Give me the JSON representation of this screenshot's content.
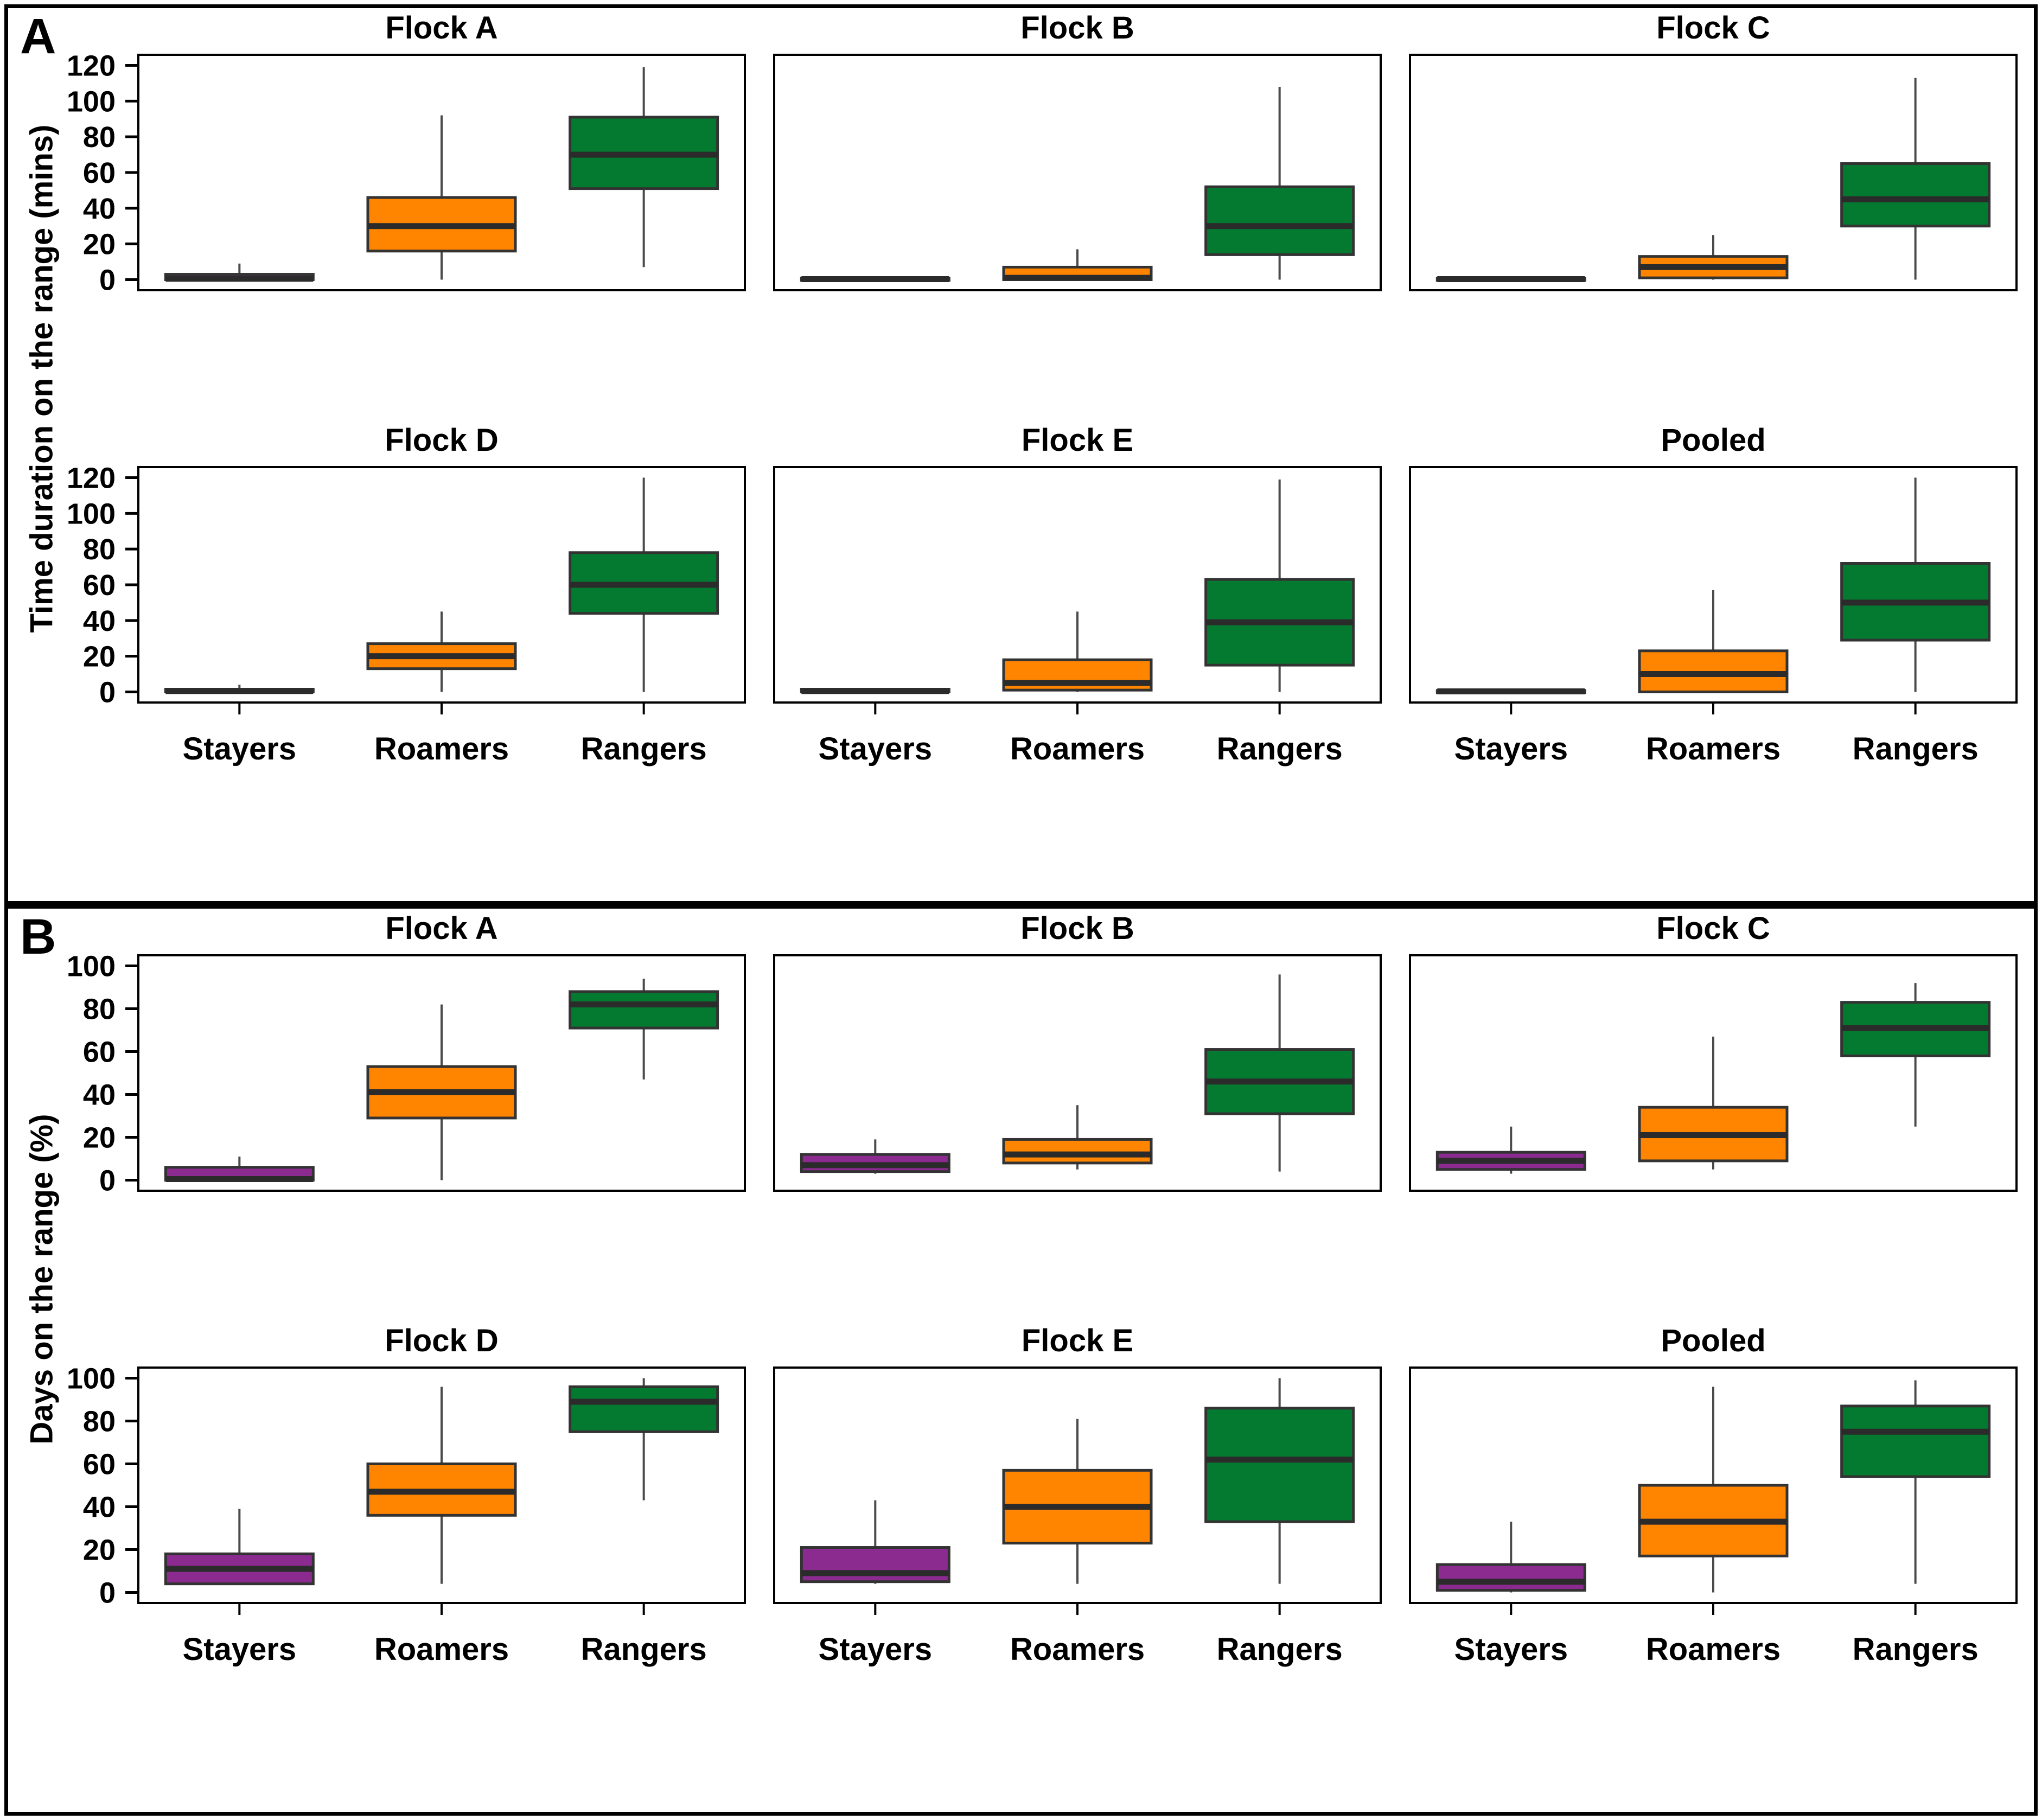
{
  "colors": {
    "stayers_fill": "#8B2A8F",
    "roamers_fill": "#FF8500",
    "rangers_fill": "#047A30",
    "box_border": "#333333",
    "median_line": "#2B2B2B",
    "whisker_line": "#4A4A4A",
    "frame": "#000000"
  },
  "chart_data": [
    {
      "type": "boxplot",
      "panel_label": "A",
      "ylabel": "Time duration on the range (mins)",
      "ylim": [
        0,
        120
      ],
      "yticks": [
        0,
        20,
        40,
        60,
        80,
        100,
        120
      ],
      "categories": [
        "Stayers",
        "Roamers",
        "Rangers"
      ],
      "legend_position": "none",
      "grid": false,
      "subplots": [
        {
          "title": "Flock A",
          "boxes": [
            {
              "category": "Stayers",
              "whisker_low": 0,
              "q1": 0,
              "median": 0.5,
              "q3": 3,
              "whisker_high": 9
            },
            {
              "category": "Roamers",
              "whisker_low": 0,
              "q1": 16,
              "median": 30,
              "q3": 46,
              "whisker_high": 92
            },
            {
              "category": "Rangers",
              "whisker_low": 7,
              "q1": 51,
              "median": 70,
              "q3": 91,
              "whisker_high": 119
            }
          ]
        },
        {
          "title": "Flock B",
          "boxes": [
            {
              "category": "Stayers",
              "whisker_low": 0,
              "q1": 0,
              "median": 0.3,
              "q3": 0.8,
              "whisker_high": 1
            },
            {
              "category": "Roamers",
              "whisker_low": 0,
              "q1": 0,
              "median": 1,
              "q3": 7,
              "whisker_high": 17
            },
            {
              "category": "Rangers",
              "whisker_low": 0,
              "q1": 14,
              "median": 30,
              "q3": 52,
              "whisker_high": 108
            }
          ]
        },
        {
          "title": "Flock C",
          "boxes": [
            {
              "category": "Stayers",
              "whisker_low": 0,
              "q1": 0,
              "median": 0.3,
              "q3": 0.8,
              "whisker_high": 1
            },
            {
              "category": "Roamers",
              "whisker_low": 0,
              "q1": 1,
              "median": 7,
              "q3": 13,
              "whisker_high": 25
            },
            {
              "category": "Rangers",
              "whisker_low": 0,
              "q1": 30,
              "median": 45,
              "q3": 65,
              "whisker_high": 113
            }
          ]
        },
        {
          "title": "Flock D",
          "boxes": [
            {
              "category": "Stayers",
              "whisker_low": 0,
              "q1": 0,
              "median": 0.5,
              "q3": 1.5,
              "whisker_high": 4
            },
            {
              "category": "Roamers",
              "whisker_low": 0,
              "q1": 13,
              "median": 20,
              "q3": 27,
              "whisker_high": 45
            },
            {
              "category": "Rangers",
              "whisker_low": 0,
              "q1": 44,
              "median": 60,
              "q3": 78,
              "whisker_high": 120
            }
          ]
        },
        {
          "title": "Flock E",
          "boxes": [
            {
              "category": "Stayers",
              "whisker_low": 0,
              "q1": 0,
              "median": 0.5,
              "q3": 1.5,
              "whisker_high": 2
            },
            {
              "category": "Roamers",
              "whisker_low": 0,
              "q1": 1,
              "median": 5,
              "q3": 18,
              "whisker_high": 45
            },
            {
              "category": "Rangers",
              "whisker_low": 0,
              "q1": 15,
              "median": 39,
              "q3": 63,
              "whisker_high": 119
            }
          ]
        },
        {
          "title": "Pooled",
          "boxes": [
            {
              "category": "Stayers",
              "whisker_low": 0,
              "q1": 0,
              "median": 0.3,
              "q3": 0.8,
              "whisker_high": 1
            },
            {
              "category": "Roamers",
              "whisker_low": 0,
              "q1": 0,
              "median": 10,
              "q3": 23,
              "whisker_high": 57
            },
            {
              "category": "Rangers",
              "whisker_low": 0,
              "q1": 29,
              "median": 50,
              "q3": 72,
              "whisker_high": 120
            }
          ]
        }
      ]
    },
    {
      "type": "boxplot",
      "panel_label": "B",
      "ylabel": "Days on the range (%)",
      "ylim": [
        0,
        100
      ],
      "yticks": [
        0,
        20,
        40,
        60,
        80,
        100
      ],
      "categories": [
        "Stayers",
        "Roamers",
        "Rangers"
      ],
      "legend_position": "none",
      "grid": false,
      "subplots": [
        {
          "title": "Flock A",
          "boxes": [
            {
              "category": "Stayers",
              "whisker_low": 0,
              "q1": 0,
              "median": 0.5,
              "q3": 6,
              "whisker_high": 11
            },
            {
              "category": "Roamers",
              "whisker_low": 0,
              "q1": 29,
              "median": 41,
              "q3": 53,
              "whisker_high": 82
            },
            {
              "category": "Rangers",
              "whisker_low": 47,
              "q1": 71,
              "median": 82,
              "q3": 88,
              "whisker_high": 94
            }
          ]
        },
        {
          "title": "Flock B",
          "boxes": [
            {
              "category": "Stayers",
              "whisker_low": 3,
              "q1": 4,
              "median": 7,
              "q3": 12,
              "whisker_high": 19
            },
            {
              "category": "Roamers",
              "whisker_low": 5,
              "q1": 8,
              "median": 12,
              "q3": 19,
              "whisker_high": 35
            },
            {
              "category": "Rangers",
              "whisker_low": 4,
              "q1": 31,
              "median": 46,
              "q3": 61,
              "whisker_high": 96
            }
          ]
        },
        {
          "title": "Flock C",
          "boxes": [
            {
              "category": "Stayers",
              "whisker_low": 3,
              "q1": 5,
              "median": 9,
              "q3": 13,
              "whisker_high": 25
            },
            {
              "category": "Roamers",
              "whisker_low": 5,
              "q1": 9,
              "median": 21,
              "q3": 34,
              "whisker_high": 67
            },
            {
              "category": "Rangers",
              "whisker_low": 25,
              "q1": 58,
              "median": 71,
              "q3": 83,
              "whisker_high": 92
            }
          ]
        },
        {
          "title": "Flock D",
          "boxes": [
            {
              "category": "Stayers",
              "whisker_low": 4,
              "q1": 4,
              "median": 11,
              "q3": 18,
              "whisker_high": 39
            },
            {
              "category": "Roamers",
              "whisker_low": 4,
              "q1": 36,
              "median": 47,
              "q3": 60,
              "whisker_high": 96
            },
            {
              "category": "Rangers",
              "whisker_low": 43,
              "q1": 75,
              "median": 89,
              "q3": 96,
              "whisker_high": 100
            }
          ]
        },
        {
          "title": "Flock E",
          "boxes": [
            {
              "category": "Stayers",
              "whisker_low": 4,
              "q1": 5,
              "median": 9,
              "q3": 21,
              "whisker_high": 43
            },
            {
              "category": "Roamers",
              "whisker_low": 4,
              "q1": 23,
              "median": 40,
              "q3": 57,
              "whisker_high": 81
            },
            {
              "category": "Rangers",
              "whisker_low": 4,
              "q1": 33,
              "median": 62,
              "q3": 86,
              "whisker_high": 100
            }
          ]
        },
        {
          "title": "Pooled",
          "boxes": [
            {
              "category": "Stayers",
              "whisker_low": 0,
              "q1": 1,
              "median": 5,
              "q3": 13,
              "whisker_high": 33
            },
            {
              "category": "Roamers",
              "whisker_low": 0,
              "q1": 17,
              "median": 33,
              "q3": 50,
              "whisker_high": 96
            },
            {
              "category": "Rangers",
              "whisker_low": 4,
              "q1": 54,
              "median": 75,
              "q3": 87,
              "whisker_high": 99
            }
          ]
        }
      ]
    }
  ]
}
